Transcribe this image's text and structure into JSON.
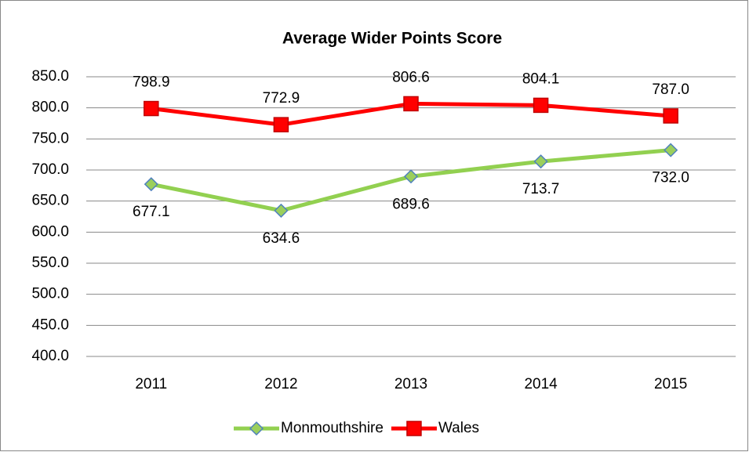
{
  "chart_data": {
    "type": "line",
    "title": "Average Wider Points Score",
    "categories": [
      "2011",
      "2012",
      "2013",
      "2014",
      "2015"
    ],
    "series": [
      {
        "name": "Monmouthshire",
        "color": "#92d050",
        "marker": "diamond",
        "marker_fill": "#9bcf5c",
        "marker_stroke": "#4f81bd",
        "values": [
          677.1,
          634.6,
          689.6,
          713.7,
          732.0
        ],
        "value_labels": [
          "677.1",
          "634.6",
          "689.6",
          "713.7",
          "732.0"
        ],
        "label_position": "below"
      },
      {
        "name": "Wales",
        "color": "#ff0000",
        "marker": "square",
        "marker_fill": "#ff0000",
        "marker_stroke": "#c00000",
        "values": [
          798.9,
          772.9,
          806.6,
          804.1,
          787.0
        ],
        "value_labels": [
          "798.9",
          "772.9",
          "806.6",
          "804.1",
          "787.0"
        ],
        "label_position": "above"
      }
    ],
    "ylim": [
      400,
      850
    ],
    "yticks": [
      {
        "value": 400,
        "label": "400.0"
      },
      {
        "value": 450,
        "label": "450.0"
      },
      {
        "value": 500,
        "label": "500.0"
      },
      {
        "value": 550,
        "label": "550.0"
      },
      {
        "value": 600,
        "label": "600.0"
      },
      {
        "value": 650,
        "label": "650.0"
      },
      {
        "value": 700,
        "label": "700.0"
      },
      {
        "value": 750,
        "label": "750.0"
      },
      {
        "value": 800,
        "label": "800.0"
      },
      {
        "value": 850,
        "label": "850.0"
      }
    ],
    "grid": true,
    "legend": "bottom"
  }
}
